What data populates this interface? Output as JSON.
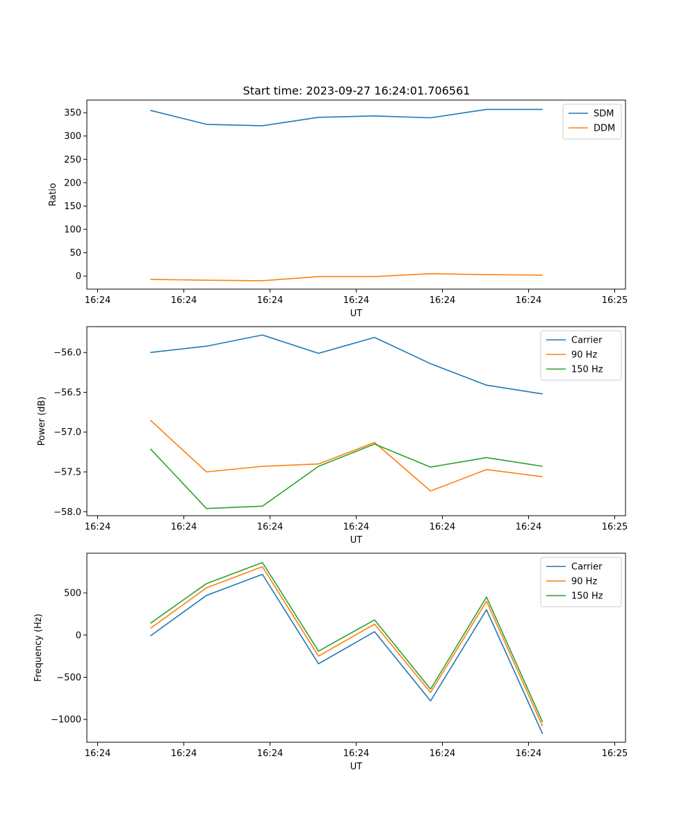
{
  "figure": {
    "title": "Start time: 2023-09-27 16:24:01.706561"
  },
  "chart_data": [
    {
      "type": "line",
      "title": "Start time: 2023-09-27 16:24:01.706561",
      "xlabel": "UT",
      "ylabel": "Ratio",
      "x_tick_values": [
        -1.1,
        2.9,
        6.9,
        10.9,
        14.9,
        18.9,
        22.9
      ],
      "x_tick_labels": [
        "16:24",
        "16:24",
        "16:24",
        "16:24",
        "16:24",
        "16:24",
        "16:25"
      ],
      "xlim": [
        -1.6,
        23.4
      ],
      "y_ticks": [
        0,
        50,
        100,
        150,
        200,
        250,
        300,
        350
      ],
      "y_tick_labels": [
        "0",
        "50",
        "100",
        "150",
        "200",
        "250",
        "300",
        "350"
      ],
      "ylim": [
        -28,
        377
      ],
      "x": [
        1.35,
        3.95,
        6.55,
        9.15,
        11.75,
        14.35,
        16.95,
        19.55
      ],
      "series": [
        {
          "name": "SDM",
          "color": "#1f77b4",
          "values": [
            355,
            325,
            322,
            340,
            343,
            339,
            357,
            357
          ]
        },
        {
          "name": "DDM",
          "color": "#ff7f0e",
          "values": [
            -7,
            -9,
            -10,
            -1,
            -1,
            5,
            3,
            2
          ]
        }
      ],
      "legend": "top-right"
    },
    {
      "type": "line",
      "xlabel": "UT",
      "ylabel": "Power (dB)",
      "x_tick_values": [
        -1.1,
        2.9,
        6.9,
        10.9,
        14.9,
        18.9,
        22.9
      ],
      "x_tick_labels": [
        "16:24",
        "16:24",
        "16:24",
        "16:24",
        "16:24",
        "16:24",
        "16:25"
      ],
      "xlim": [
        -1.6,
        23.4
      ],
      "y_ticks": [
        -58.0,
        -57.5,
        -57.0,
        -56.5,
        -56.0
      ],
      "y_tick_labels": [
        "−58.0",
        "−57.5",
        "−57.0",
        "−56.5",
        "−56.0"
      ],
      "ylim": [
        -58.05,
        -55.675
      ],
      "x": [
        1.35,
        3.95,
        6.55,
        9.15,
        11.75,
        14.35,
        16.95,
        19.55
      ],
      "series": [
        {
          "name": "Carrier",
          "color": "#1f77b4",
          "values": [
            -56.0,
            -55.92,
            -55.78,
            -56.01,
            -55.81,
            -56.14,
            -56.41,
            -56.52
          ]
        },
        {
          "name": "90 Hz",
          "color": "#ff7f0e",
          "values": [
            -56.85,
            -57.5,
            -57.43,
            -57.4,
            -57.13,
            -57.74,
            -57.47,
            -57.56
          ]
        },
        {
          "name": "150 Hz",
          "color": "#2ca02c",
          "values": [
            -57.21,
            -57.96,
            -57.93,
            -57.43,
            -57.15,
            -57.44,
            -57.32,
            -57.43
          ]
        }
      ],
      "legend": "top-right"
    },
    {
      "type": "line",
      "xlabel": "UT",
      "ylabel": "Frequency (Hz)",
      "x_tick_values": [
        -1.1,
        2.9,
        6.9,
        10.9,
        14.9,
        18.9,
        22.9
      ],
      "x_tick_labels": [
        "16:24",
        "16:24",
        "16:24",
        "16:24",
        "16:24",
        "16:24",
        "16:25"
      ],
      "xlim": [
        -1.6,
        23.4
      ],
      "y_ticks": [
        -1000,
        -500,
        0,
        500
      ],
      "y_tick_labels": [
        "−1000",
        "−500",
        "0",
        "500"
      ],
      "ylim": [
        -1270,
        970
      ],
      "x": [
        1.35,
        3.95,
        6.55,
        9.15,
        11.75,
        14.35,
        16.95,
        19.55
      ],
      "series": [
        {
          "name": "Carrier",
          "color": "#1f77b4",
          "values": [
            -10,
            470,
            720,
            -340,
            40,
            -780,
            300,
            -1170
          ]
        },
        {
          "name": "90 Hz",
          "color": "#ff7f0e",
          "values": [
            80,
            560,
            810,
            -250,
            130,
            -680,
            400,
            -1080
          ]
        },
        {
          "name": "150 Hz",
          "color": "#2ca02c",
          "values": [
            140,
            610,
            860,
            -190,
            180,
            -640,
            450,
            -1030
          ]
        }
      ],
      "legend": "top-right"
    }
  ]
}
